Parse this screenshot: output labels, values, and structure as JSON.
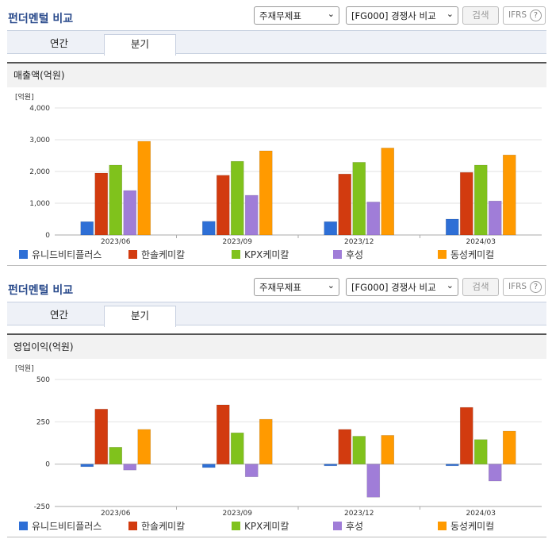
{
  "colors": {
    "series": [
      "#2e6fd6",
      "#d23b0f",
      "#80c21c",
      "#a07dd8",
      "#ff9a00"
    ]
  },
  "panels": [
    {
      "title": "펀더멘털 비교",
      "select1": "주재무제표",
      "select2": "[FG000] 경쟁사 비교",
      "search_label": "검색",
      "ifrs_label": "IFRS",
      "ifrs_help": "?",
      "tabs": [
        "연간",
        "분기"
      ],
      "active_tab": "분기",
      "section_title": "매출액(억원)"
    },
    {
      "title": "펀더멘털 비교",
      "select1": "주재무제표",
      "select2": "[FG000] 경쟁사 비교",
      "search_label": "검색",
      "ifrs_label": "IFRS",
      "ifrs_help": "?",
      "tabs": [
        "연간",
        "분기"
      ],
      "active_tab": "분기",
      "section_title": "영업이익(억원)"
    }
  ],
  "chart_data": [
    {
      "type": "bar",
      "unit_label": "[억원]",
      "categories": [
        "2023/06",
        "2023/09",
        "2023/12",
        "2024/03"
      ],
      "ylim": [
        0,
        4000
      ],
      "yticks": [
        0,
        1000,
        2000,
        3000,
        4000
      ],
      "ytick_labels": [
        "0",
        "1,000",
        "2,000",
        "3,000",
        "4,000"
      ],
      "grid": true,
      "legend_position": "bottom",
      "series": [
        {
          "name": "유니드비티플러스",
          "values": [
            420,
            430,
            420,
            500
          ]
        },
        {
          "name": "한솔케미칼",
          "values": [
            1950,
            1880,
            1920,
            1970
          ]
        },
        {
          "name": "KPX케미칼",
          "values": [
            2200,
            2320,
            2290,
            2200
          ]
        },
        {
          "name": "후성",
          "values": [
            1400,
            1250,
            1040,
            1070
          ]
        },
        {
          "name": "동성케미컬",
          "values": [
            2950,
            2650,
            2740,
            2520
          ]
        }
      ]
    },
    {
      "type": "bar",
      "unit_label": "[억원]",
      "categories": [
        "2023/06",
        "2023/09",
        "2023/12",
        "2024/03"
      ],
      "ylim": [
        -250,
        500
      ],
      "yticks": [
        -250,
        0,
        250,
        500
      ],
      "ytick_labels": [
        "-250",
        "0",
        "250",
        "500"
      ],
      "grid": true,
      "legend_position": "bottom",
      "series": [
        {
          "name": "유니드비티플러스",
          "values": [
            -15,
            -20,
            -10,
            -10
          ]
        },
        {
          "name": "한솔케미칼",
          "values": [
            325,
            350,
            205,
            335
          ]
        },
        {
          "name": "KPX케미칼",
          "values": [
            100,
            185,
            165,
            145
          ]
        },
        {
          "name": "후성",
          "values": [
            -35,
            -75,
            -195,
            -100
          ]
        },
        {
          "name": "동성케미컬",
          "values": [
            205,
            265,
            170,
            195
          ]
        }
      ]
    }
  ]
}
